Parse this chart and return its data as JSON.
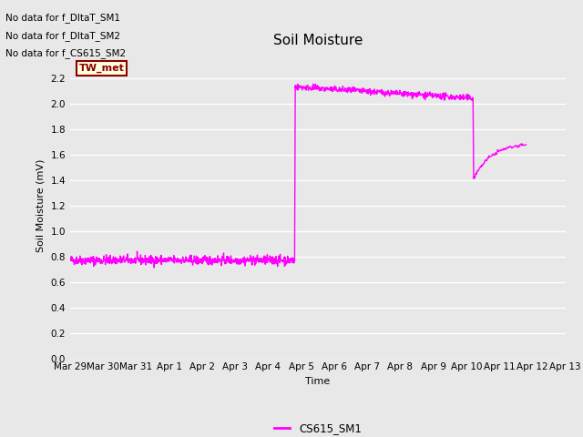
{
  "title": "Soil Moisture",
  "ylabel": "Soil Moisture (mV)",
  "xlabel": "Time",
  "ylim": [
    0.0,
    2.4
  ],
  "yticks": [
    0.0,
    0.2,
    0.4,
    0.6,
    0.8,
    1.0,
    1.2,
    1.4,
    1.6,
    1.8,
    2.0,
    2.2
  ],
  "xtick_labels": [
    "Mar 29",
    "Mar 30",
    "Mar 31",
    "Apr 1",
    "Apr 2",
    "Apr 3",
    "Apr 4",
    "Apr 5",
    "Apr 6",
    "Apr 7",
    "Apr 8",
    "Apr 9",
    "Apr 10",
    "Apr 11",
    "Apr 12",
    "Apr 13"
  ],
  "line_color": "#ff00ff",
  "line_width": 1.0,
  "no_data_texts": [
    "No data for f_DltaT_SM1",
    "No data for f_DltaT_SM2",
    "No data for f_CS615_SM2"
  ],
  "tw_met_box_text": "TW_met",
  "legend_label": "CS615_SM1",
  "bg_color": "#e8e8e8",
  "plot_bg_color": "#e8e8e8",
  "grid_color": "#ffffff",
  "title_fontsize": 11,
  "label_fontsize": 8,
  "tick_fontsize": 7.5
}
